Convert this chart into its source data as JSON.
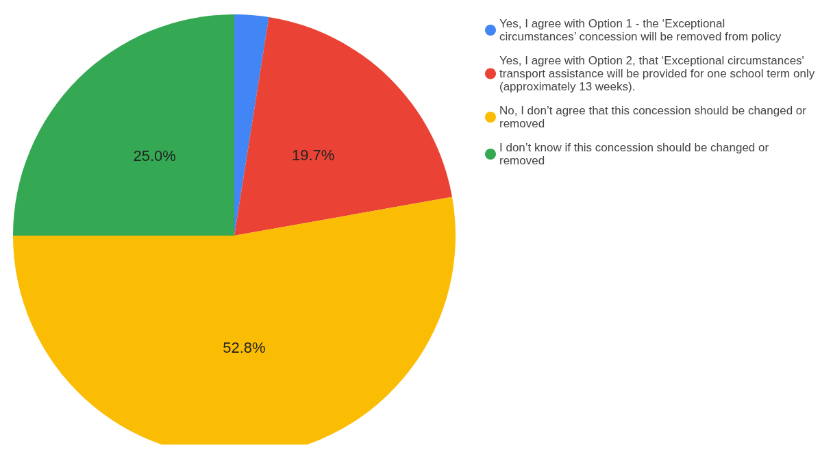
{
  "chart_data": {
    "type": "pie",
    "categories": [
      "Yes, I agree with Option 1 - the ‘Exceptional circumstances’ concession will be removed from policy",
      "Yes, I agree with Option 2, that ‘Exceptional circumstances' transport assistance will be provided for one school term only (approximately 13 weeks).",
      "No, I don’t agree that this concession should be changed or removed",
      "I don’t know if this concession should be changed or removed"
    ],
    "values": [
      2.5,
      19.7,
      52.8,
      25.0
    ],
    "value_labels": [
      null,
      "19.7%",
      "52.8%",
      "25.0%"
    ],
    "colors": [
      "#4285f4",
      "#ea4335",
      "#fbbc04",
      "#34a853"
    ],
    "legend": "top right"
  }
}
